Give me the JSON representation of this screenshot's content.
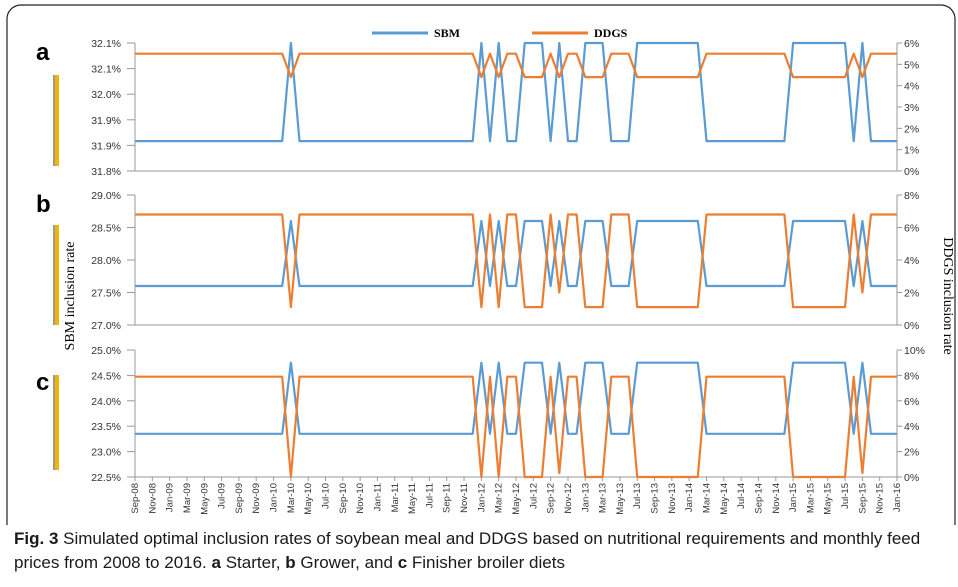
{
  "legend": [
    {
      "name": "SBM",
      "color": "#5b9bd5"
    },
    {
      "name": "DDGS",
      "color": "#ed7d31"
    }
  ],
  "left_axis_label": "SBM inclusion rate",
  "right_axis_label": "DDGS inclusion rate",
  "x_tick_labels": [
    "Sep-08",
    "Nov-08",
    "Jan-09",
    "Mar-09",
    "May-09",
    "Jul-09",
    "Sep-09",
    "Nov-09",
    "Jan-10",
    "Mar-10",
    "May-10",
    "Jul-10",
    "Sep-10",
    "Nov-10",
    "Jan-11",
    "Mar-11",
    "May-11",
    "Jul-11",
    "Sep-11",
    "Nov-11",
    "Jan-12",
    "Mar-12",
    "May-12",
    "Jul-12",
    "Sep-12",
    "Nov-12",
    "Jan-13",
    "Mar-13",
    "May-13",
    "Jul-13",
    "Sep-13",
    "Nov-13",
    "Jan-14",
    "Mar-14",
    "May-14",
    "Jul-14",
    "Sep-14",
    "Nov-14",
    "Jan-15",
    "Mar-15",
    "May-15",
    "Jul-15",
    "Sep-15",
    "Nov-15",
    "Jan-16"
  ],
  "panels": [
    {
      "letter": "a",
      "left_ticks": [
        "32.1%",
        "32.1%",
        "32.0%",
        "31.9%",
        "31.9%",
        "31.8%"
      ],
      "right_ticks": [
        "6%",
        "5%",
        "4%",
        "3%",
        "2%",
        "1%",
        "0%"
      ]
    },
    {
      "letter": "b",
      "left_ticks": [
        "29.0%",
        "28.5%",
        "28.0%",
        "27.5%",
        "27.0%"
      ],
      "right_ticks": [
        "8%",
        "6%",
        "4%",
        "2%",
        "0%"
      ]
    },
    {
      "letter": "c",
      "left_ticks": [
        "25.0%",
        "24.5%",
        "24.0%",
        "23.5%",
        "23.0%",
        "22.5%"
      ],
      "right_ticks": [
        "10%",
        "8%",
        "6%",
        "4%",
        "2%",
        "0%"
      ]
    }
  ],
  "caption": {
    "fig_label": "Fig. 3",
    "text_parts": [
      " Simulated optimal inclusion rates of soybean meal and DDGS based on nutritional requirements and monthly feed prices from 2008 to 2016. ",
      "a",
      " Starter, ",
      "b",
      " Grower, and ",
      "c",
      " Finisher broiler diets"
    ]
  },
  "chart_data": [
    {
      "type": "line",
      "panel": "a",
      "x_start": "Sep-08",
      "x_end": "Jan-16",
      "x_count": 89,
      "ylim_left": [
        31.8,
        32.1
      ],
      "ylim_right": [
        0,
        6
      ],
      "series": [
        {
          "name": "SBM",
          "axis": "left",
          "low": 31.87,
          "high": 32.1
        },
        {
          "name": "DDGS",
          "axis": "right",
          "low": 4.4,
          "high": 5.5
        }
      ]
    },
    {
      "type": "line",
      "panel": "b",
      "x_start": "Sep-08",
      "x_end": "Jan-16",
      "x_count": 89,
      "ylim_left": [
        27.0,
        29.0
      ],
      "ylim_right": [
        0,
        8
      ],
      "series": [
        {
          "name": "SBM",
          "axis": "left",
          "low": 27.6,
          "high": 28.6
        },
        {
          "name": "DDGS",
          "axis": "right",
          "low": 1.1,
          "high": 6.8,
          "mid": 2.0
        }
      ]
    },
    {
      "type": "line",
      "panel": "c",
      "x_start": "Sep-08",
      "x_end": "Jan-16",
      "x_count": 89,
      "ylim_left": [
        22.5,
        25.0
      ],
      "ylim_right": [
        0,
        10
      ],
      "series": [
        {
          "name": "SBM",
          "axis": "left",
          "low": 23.35,
          "high": 24.75
        },
        {
          "name": "DDGS",
          "axis": "right",
          "low": 0,
          "high": 7.9,
          "mid": 0.3
        }
      ]
    }
  ],
  "sbm_state": [
    0,
    0,
    0,
    0,
    0,
    0,
    0,
    0,
    0,
    0,
    0,
    0,
    0,
    0,
    0,
    0,
    0,
    0,
    1,
    0,
    0,
    0,
    0,
    0,
    0,
    0,
    0,
    0,
    0,
    0,
    0,
    0,
    0,
    0,
    0,
    0,
    0,
    0,
    0,
    0,
    1,
    0,
    1,
    0,
    0,
    1,
    1,
    1,
    0,
    1,
    0,
    0,
    1,
    1,
    1,
    0,
    0,
    0,
    1,
    1,
    1,
    1,
    1,
    1,
    1,
    1,
    0,
    0,
    0,
    0,
    0,
    0,
    0,
    0,
    0,
    0,
    1,
    1,
    1,
    1,
    1,
    1,
    1,
    0,
    1,
    0,
    0,
    0,
    0
  ],
  "ddgs_mode": [
    0,
    0,
    0,
    0,
    0,
    0,
    0,
    0,
    0,
    0,
    0,
    0,
    0,
    0,
    0,
    0,
    0,
    0,
    1,
    0,
    0,
    0,
    0,
    0,
    0,
    0,
    0,
    0,
    0,
    0,
    0,
    0,
    0,
    0,
    0,
    0,
    0,
    0,
    0,
    0,
    1,
    0,
    1,
    0,
    0,
    1,
    1,
    1,
    0,
    2,
    0,
    0,
    1,
    1,
    1,
    0,
    0,
    0,
    1,
    1,
    1,
    1,
    1,
    1,
    1,
    1,
    0,
    0,
    0,
    0,
    0,
    0,
    0,
    0,
    0,
    0,
    1,
    1,
    1,
    1,
    1,
    1,
    1,
    0,
    2,
    0,
    0,
    0,
    0
  ]
}
